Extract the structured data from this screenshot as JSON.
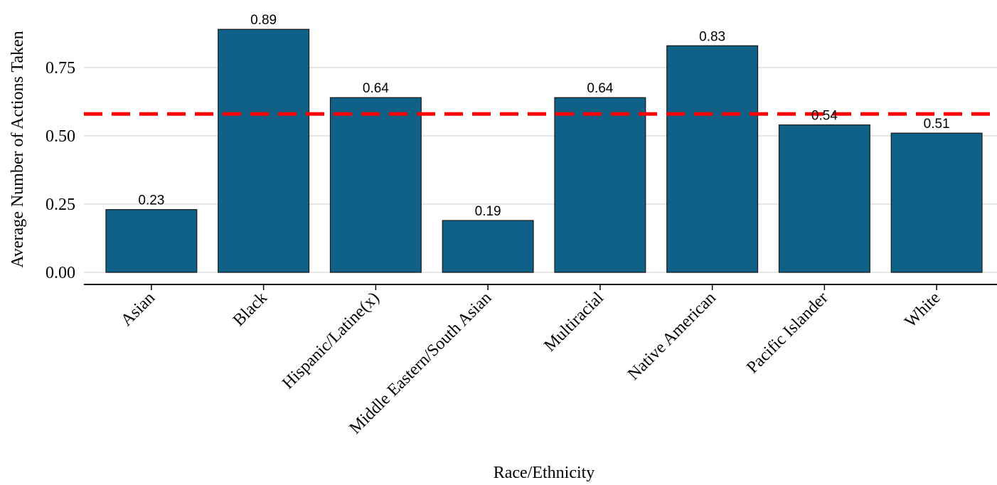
{
  "chart_data": {
    "type": "bar",
    "categories": [
      "Asian",
      "Black",
      "Hispanic/Latine(x)",
      "Middle Eastern/South Asian",
      "Multiracial",
      "Native American",
      "Pacific Islander",
      "White"
    ],
    "values": [
      0.23,
      0.89,
      0.64,
      0.19,
      0.64,
      0.83,
      0.54,
      0.51
    ],
    "data_labels": [
      "0.23",
      "0.89",
      "0.64",
      "0.19",
      "0.64",
      "0.83",
      "0.54",
      "0.51"
    ],
    "xlabel": "Race/Ethnicity",
    "ylabel": "Average Number of Actions Taken",
    "yticks": [
      0,
      0.25,
      0.5,
      0.75
    ],
    "ytick_labels": [
      "0.00",
      "0.25",
      "0.50",
      "0.75"
    ],
    "ylim": [
      0,
      0.89
    ],
    "grid": true,
    "reference_line": {
      "value": 0.58,
      "style": "dashed",
      "color": "#ff0000"
    },
    "colors": {
      "bar": "#106188",
      "bar_edge": "#1a1a1a",
      "grid": "#e6e6e6",
      "axis": "#000000"
    }
  }
}
